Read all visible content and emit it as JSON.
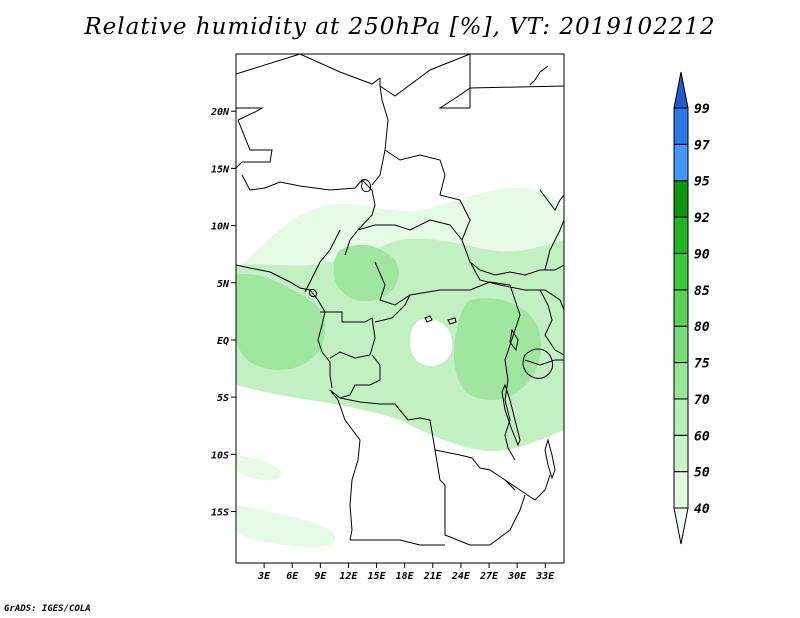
{
  "title": "Relative humidity at 250hPa [%], VT: 2019102212",
  "credit": "GrADS: IGES/COLA",
  "map": {
    "lat_labels": [
      "20N",
      "15N",
      "10N",
      "5N",
      "EQ",
      "5S",
      "10S",
      "15S"
    ],
    "lat_values": [
      20,
      15,
      10,
      5,
      0,
      -5,
      -10,
      -15
    ],
    "lon_labels": [
      "3E",
      "6E",
      "9E",
      "12E",
      "15E",
      "18E",
      "21E",
      "24E",
      "27E",
      "30E",
      "33E"
    ],
    "lon_values": [
      3,
      6,
      9,
      12,
      15,
      18,
      21,
      24,
      27,
      30,
      33
    ],
    "lon_range": [
      0,
      35
    ],
    "lat_range": [
      -19.5,
      25
    ]
  },
  "colorbar": {
    "levels": [
      "40",
      "50",
      "60",
      "70",
      "75",
      "80",
      "85",
      "90",
      "92",
      "95",
      "97",
      "99"
    ],
    "colors": [
      "#f0fcf0",
      "#e1f8e1",
      "#c8f4c8",
      "#b4f0b4",
      "#96e696",
      "#78dc78",
      "#5ad25a",
      "#3cc83c",
      "#23b423",
      "#0f960f",
      "#4196ff",
      "#2d78e6",
      "#1e5ad2"
    ]
  },
  "colors": {
    "land_outline": "#000000",
    "humidity_light": "#e6fae6",
    "humidity_mid": "#c3f0c3",
    "humidity_dark": "#a0e6a0"
  }
}
